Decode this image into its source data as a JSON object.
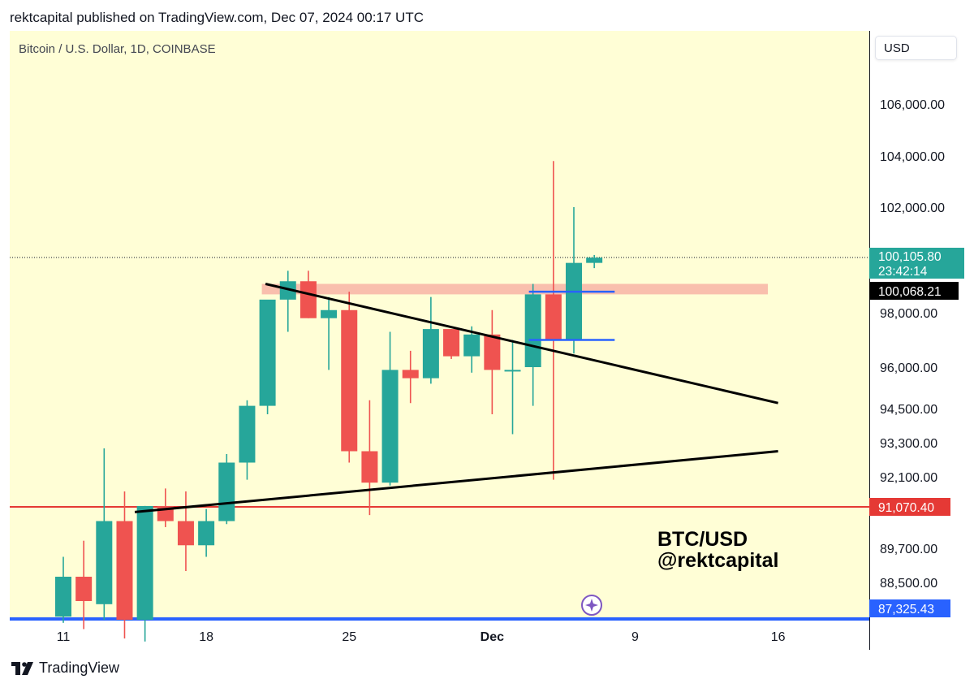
{
  "publisher_line": "rektcapital published on TradingView.com, Dec 07, 2024 00:17 UTC",
  "symbol_line": "Bitcoin / U.S. Dollar, 1D, COINBASE",
  "currency": "USD",
  "footer_brand": "TradingView",
  "watermark": {
    "line1": "BTC/USD",
    "line2": "@rektcapital"
  },
  "colors": {
    "up": "#26a69a",
    "down": "#ef5350",
    "background": "#fffed6",
    "support": "#e53935",
    "base_line": "#2962ff",
    "zone": "#f8b4a6",
    "box": "#2962ff"
  },
  "chart_data": {
    "type": "candlestick",
    "title": "Bitcoin / U.S. Dollar, 1D, COINBASE",
    "y_ticks": [
      "106,000.00",
      "104,000.00",
      "102,000.00",
      "98,000.00",
      "96,000.00",
      "94,500.00",
      "93,300.00",
      "92,100.00",
      "89,700.00",
      "88,500.00"
    ],
    "y_scale_note": "price axis, labelled ticks as shown",
    "x_labels": [
      {
        "day": 11,
        "label": "11"
      },
      {
        "day": 18,
        "label": "18"
      },
      {
        "day": 25,
        "label": "25"
      },
      {
        "day": 32,
        "label": "Dec"
      },
      {
        "day": 39,
        "label": "9"
      },
      {
        "day": 46,
        "label": "16"
      }
    ],
    "candles": [
      {
        "day": 11,
        "o": 87400,
        "h": 89400,
        "l": 87200,
        "c": 88700
      },
      {
        "day": 12,
        "o": 88700,
        "h": 89950,
        "l": 87000,
        "c": 87900
      },
      {
        "day": 13,
        "o": 87800,
        "h": 93100,
        "l": 87300,
        "c": 90600
      },
      {
        "day": 14,
        "o": 90600,
        "h": 91600,
        "l": 86700,
        "c": 87300
      },
      {
        "day": 15,
        "o": 87300,
        "h": 91100,
        "l": 86600,
        "c": 91100
      },
      {
        "day": 16,
        "o": 91100,
        "h": 91700,
        "l": 90400,
        "c": 90600
      },
      {
        "day": 17,
        "o": 90600,
        "h": 91600,
        "l": 88900,
        "c": 89800
      },
      {
        "day": 18,
        "o": 89800,
        "h": 91000,
        "l": 89400,
        "c": 90600
      },
      {
        "day": 19,
        "o": 90600,
        "h": 92900,
        "l": 90500,
        "c": 92600
      },
      {
        "day": 20,
        "o": 92600,
        "h": 94800,
        "l": 92000,
        "c": 94600
      },
      {
        "day": 21,
        "o": 94600,
        "h": 98400,
        "l": 94300,
        "c": 98500
      },
      {
        "day": 22,
        "o": 98500,
        "h": 99600,
        "l": 97300,
        "c": 99200
      },
      {
        "day": 23,
        "o": 99200,
        "h": 99600,
        "l": 97800,
        "c": 97800
      },
      {
        "day": 24,
        "o": 97800,
        "h": 98600,
        "l": 95900,
        "c": 98100
      },
      {
        "day": 25,
        "o": 98100,
        "h": 98800,
        "l": 92600,
        "c": 93000
      },
      {
        "day": 26,
        "o": 93000,
        "h": 94800,
        "l": 90800,
        "c": 91900
      },
      {
        "day": 27,
        "o": 91900,
        "h": 97300,
        "l": 91800,
        "c": 95900
      },
      {
        "day": 28,
        "o": 95900,
        "h": 96600,
        "l": 94700,
        "c": 95600
      },
      {
        "day": 29,
        "o": 95600,
        "h": 98600,
        "l": 95400,
        "c": 97400
      },
      {
        "day": 30,
        "o": 97400,
        "h": 97400,
        "l": 96300,
        "c": 96400
      },
      {
        "day": 31,
        "o": 96400,
        "h": 97500,
        "l": 95800,
        "c": 97200
      },
      {
        "day": 32,
        "o": 97200,
        "h": 98100,
        "l": 94300,
        "c": 95900
      },
      {
        "day": 33,
        "o": 95900,
        "h": 97000,
        "l": 93600,
        "c": 95900
      },
      {
        "day": 34,
        "o": 96000,
        "h": 99100,
        "l": 94600,
        "c": 98700
      },
      {
        "day": 35,
        "o": 98700,
        "h": 103800,
        "l": 92000,
        "c": 97000
      },
      {
        "day": 36,
        "o": 97000,
        "h": 102000,
        "l": 96500,
        "c": 99900
      },
      {
        "day": 37,
        "o": 99900,
        "h": 100200,
        "l": 99700,
        "c": 100100
      }
    ],
    "current_price": {
      "value": "100,105.80",
      "countdown": "23:42:14"
    },
    "annotations": {
      "price_label_black": "100,068.21",
      "support_line": {
        "value": 91070.4,
        "label": "91,070.40"
      },
      "base_line": {
        "value": 87325.43,
        "label": "87,325.43"
      },
      "resistance_zone": {
        "from_day": 21,
        "to_day": 45.5,
        "low": 98700,
        "high": 99100
      },
      "descending_trendline": [
        {
          "day": 20.9,
          "price": 99100
        },
        {
          "day": 46,
          "price": 94700
        }
      ],
      "ascending_trendline": [
        {
          "day": 14.5,
          "price": 90900
        },
        {
          "day": 46,
          "price": 93000
        }
      ],
      "range_box": {
        "from_day": 33.8,
        "to_day": 38,
        "top": 98800,
        "bottom": 97000
      }
    }
  }
}
